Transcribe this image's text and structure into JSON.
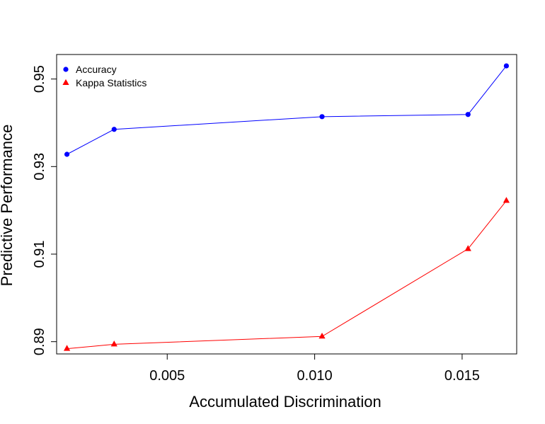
{
  "chart_data": {
    "type": "line",
    "xlabel": "Accumulated Discrimination",
    "ylabel": "Predictive Performance",
    "xlim": [
      0.00125,
      0.01685
    ],
    "ylim": [
      0.8872,
      0.9556
    ],
    "xticks": [
      {
        "value": 0.005,
        "label": "0.005"
      },
      {
        "value": 0.01,
        "label": "0.010"
      },
      {
        "value": 0.015,
        "label": "0.015"
      }
    ],
    "yticks": [
      {
        "value": 0.89,
        "label": "0.89"
      },
      {
        "value": 0.91,
        "label": "0.91"
      },
      {
        "value": 0.93,
        "label": "0.93"
      },
      {
        "value": 0.95,
        "label": "0.95"
      }
    ],
    "grid": false,
    "legend_position": "top-left",
    "series": [
      {
        "name": "Accuracy",
        "color": "#0000ff",
        "marker": "circle",
        "x": [
          0.0016,
          0.0032,
          0.01025,
          0.0152,
          0.0165
        ],
        "y": [
          0.9328,
          0.9385,
          0.9414,
          0.9419,
          0.953
        ]
      },
      {
        "name": "Kappa Statistics",
        "color": "#ff0000",
        "marker": "triangle",
        "x": [
          0.0016,
          0.0032,
          0.01025,
          0.0152,
          0.0165
        ],
        "y": [
          0.8884,
          0.8894,
          0.8912,
          0.9112,
          0.9222
        ]
      }
    ]
  }
}
